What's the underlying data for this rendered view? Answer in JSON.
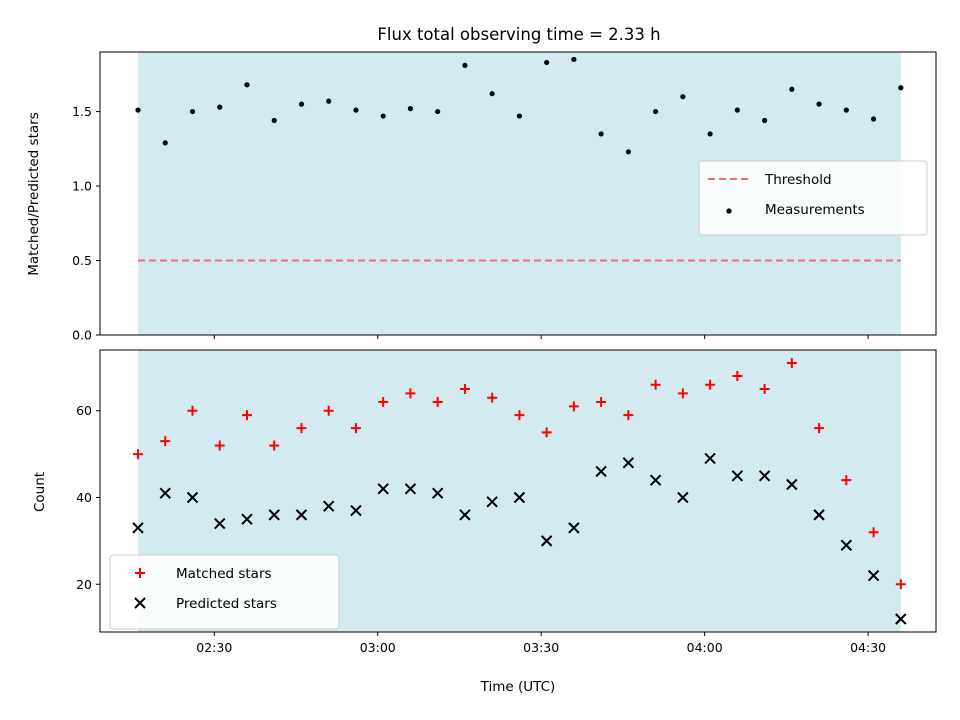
{
  "chart_data": [
    {
      "type": "scatter",
      "title": "Flux total observing time = 2.33 h",
      "xlabel": "",
      "ylabel": "Matched/Predicted stars",
      "ylim": [
        0.0,
        1.9
      ],
      "yticks": [
        "0.0",
        "0.5",
        "1.0",
        "1.5"
      ],
      "xticks": [
        "02:30",
        "03:00",
        "03:30",
        "04:00",
        "04:30"
      ],
      "x_tick_labels_visible": false,
      "shaded_span": [
        "02:16",
        "04:36"
      ],
      "shade_color": "#d3eaf0",
      "threshold": 0.5,
      "legend_position": "center-right",
      "legend": [
        {
          "label": "Threshold",
          "style": "dashed-line",
          "color": "#f07070"
        },
        {
          "label": "Measurements",
          "style": "dot",
          "color": "#000000"
        }
      ],
      "x": [
        "02:16",
        "02:21",
        "02:26",
        "02:31",
        "02:36",
        "02:41",
        "02:46",
        "02:51",
        "02:56",
        "03:01",
        "03:06",
        "03:11",
        "03:16",
        "03:21",
        "03:26",
        "03:31",
        "03:36",
        "03:41",
        "03:46",
        "03:51",
        "03:56",
        "04:01",
        "04:06",
        "04:11",
        "04:16",
        "04:21",
        "04:26",
        "04:31",
        "04:36"
      ],
      "series": [
        {
          "name": "Measurements",
          "color": "#000000",
          "values": [
            1.51,
            1.29,
            1.5,
            1.53,
            1.68,
            1.44,
            1.55,
            1.57,
            1.51,
            1.47,
            1.52,
            1.5,
            1.81,
            1.62,
            1.47,
            1.83,
            1.85,
            1.35,
            1.23,
            1.5,
            1.6,
            1.35,
            1.51,
            1.44,
            1.65,
            1.55,
            1.51,
            1.45,
            1.66
          ]
        }
      ]
    },
    {
      "type": "scatter",
      "title": "",
      "xlabel": "Time (UTC)",
      "ylabel": "Count",
      "ylim": [
        9,
        74
      ],
      "yticks": [
        "20",
        "40",
        "60"
      ],
      "xticks": [
        "02:30",
        "03:00",
        "03:30",
        "04:00",
        "04:30"
      ],
      "shaded_span": [
        "02:16",
        "04:36"
      ],
      "shade_color": "#d3eaf0",
      "legend_position": "lower-left",
      "legend": [
        {
          "label": "Matched stars",
          "style": "plus",
          "color": "#ff0000"
        },
        {
          "label": "Predicted stars",
          "style": "x",
          "color": "#000000"
        }
      ],
      "x": [
        "02:16",
        "02:21",
        "02:26",
        "02:31",
        "02:36",
        "02:41",
        "02:46",
        "02:51",
        "02:56",
        "03:01",
        "03:06",
        "03:11",
        "03:16",
        "03:21",
        "03:26",
        "03:31",
        "03:36",
        "03:41",
        "03:46",
        "03:51",
        "03:56",
        "04:01",
        "04:06",
        "04:11",
        "04:16",
        "04:21",
        "04:26",
        "04:31",
        "04:36"
      ],
      "series": [
        {
          "name": "Matched stars",
          "color": "#ff0000",
          "marker": "plus",
          "values": [
            50,
            53,
            60,
            52,
            59,
            52,
            56,
            60,
            56,
            62,
            64,
            62,
            65,
            63,
            59,
            55,
            61,
            62,
            59,
            66,
            64,
            66,
            68,
            65,
            71,
            56,
            44,
            32,
            20
          ]
        },
        {
          "name": "Predicted stars",
          "color": "#000000",
          "marker": "x",
          "values": [
            33,
            41,
            40,
            34,
            35,
            36,
            36,
            38,
            37,
            42,
            42,
            41,
            36,
            39,
            40,
            30,
            33,
            46,
            48,
            44,
            40,
            49,
            45,
            45,
            43,
            36,
            29,
            22,
            12
          ]
        }
      ]
    }
  ]
}
